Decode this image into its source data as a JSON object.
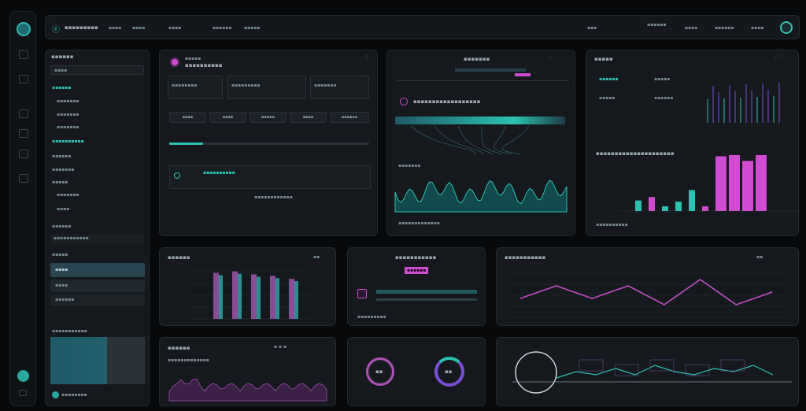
{
  "colors": {
    "bg": "#07090b",
    "panel": "#15191d",
    "teal": "#2cc2b2",
    "pink": "#d14bd2",
    "grid": "#2b3338"
  },
  "topbar": {
    "brand": "ⓔ",
    "title": "▪▪▪▪▪▪▪▪▪",
    "nav": [
      "▪▪▪▪",
      "▪▪▪▪",
      "▪▪▪▪",
      "▪▪▪▪▪▪",
      "▪▪▪▪▪"
    ],
    "right": [
      "▪▪▪",
      "▪▪▪▪▪▪",
      "▪▪▪▪",
      "▪▪▪▪▪▪",
      "▪▪▪▪"
    ]
  },
  "rail": {
    "icons": [
      "logo-icon",
      "doc-icon",
      "grid-icon",
      "card-icon",
      "chart-icon",
      "image-icon",
      "settings-icon",
      "user-icon"
    ]
  },
  "sidebar": {
    "header": "▪▪▪▪▪▪",
    "search_placeholder": "▪▪▪▪",
    "groups": [
      {
        "label": "▪▪▪▪▪▪",
        "items": [
          "▪▪▪▪▪▪▪",
          "▪▪▪▪▪▪▪",
          "▪▪▪▪▪▪▪"
        ]
      },
      {
        "label": "▪▪▪▪▪▪▪▪▪▪",
        "items": []
      },
      {
        "label": "▪▪▪▪▪▪",
        "items": []
      },
      {
        "label": "▪▪▪▪▪▪▪",
        "items": []
      },
      {
        "label": "▪▪▪▪▪",
        "items": [
          "▪▪▪▪▪▪▪",
          "▪▪▪▪"
        ]
      }
    ],
    "section2": "▪▪▪▪▪▪",
    "list": [
      "▪▪▪▪▪▪▪▪▪▪▪",
      "▪▪▪▪▪",
      "▪▪▪▪",
      "▪▪▪▪",
      "▪▪▪▪▪▪"
    ],
    "footer_label": "▪▪▪▪▪▪▪▪▪▪▪",
    "footer_bottom": "▪▪▪▪▪▪▪▪"
  },
  "panel_a": {
    "title": "▪▪▪▪▪▪▪▪▪▪",
    "subtitle": "▪▪▪▪▪",
    "fields": [
      "▪▪▪▪▪▪▪▪",
      "▪▪▪▪▪▪▪▪▪",
      "▪▪▪▪▪▪▪"
    ],
    "buttons": [
      "▪▪▪▪",
      "▪▪▪▪",
      "▪▪▪▪▪",
      "▪▪▪▪",
      "▪▪▪▪▪▪"
    ],
    "rows": [
      "▪▪▪▪▪▪▪▪▪▪",
      "▪▪▪▪▪▪▪▪▪▪▪▪"
    ],
    "progress": 0.17
  },
  "panel_b": {
    "title": "▪▪▪▪▪▪▪",
    "heading": "▪▪▪▪▪▪▪▪▪▪▪▪▪▪▪▪▪▪",
    "wave_label": "▪▪▪▪▪▪▪",
    "footer": "▪▪▪▪▪▪▪▪▪▪▪▪▪"
  },
  "panel_c": {
    "title": "▪▪▪▪▪",
    "stats": [
      "▪▪▪▪▪▪",
      "▪▪▪▪▪",
      "▪▪▪▪▪",
      "▪▪▪▪▪▪"
    ],
    "heading": "▪▪▪▪▪▪▪▪▪▪▪▪▪▪▪▪▪▪▪▪▪",
    "footer": "▪▪▪▪▪▪▪▪▪▪"
  },
  "panel_d": {
    "title": "▪▪▪▪▪▪",
    "right": "▪▪"
  },
  "panel_e": {
    "title": "▪▪▪▪▪▪▪▪▪▪▪",
    "badge": "▪▪▪▪▪▪",
    "footer": "▪▪▪▪▪▪▪▪▪"
  },
  "panel_f": {
    "title": "▪▪▪▪▪▪▪▪▪▪▪",
    "right": "▪▪"
  },
  "panel_g": {
    "title": "▪▪▪▪▪▪",
    "legend": "▪▪▪▪▪▪▪▪▪▪▪▪▪"
  },
  "panel_h": {
    "left_value": "▪▪",
    "right_value": "▪▪"
  },
  "chart_data": [
    {
      "type": "bar",
      "categories": [
        "1",
        "2",
        "3",
        "4",
        "5",
        "6",
        "7",
        "8",
        "9",
        "10"
      ],
      "series": [
        {
          "values": [
            9,
            12,
            4,
            8,
            18,
            4,
            47,
            48,
            43,
            48
          ]
        }
      ],
      "ylim": [
        0,
        50
      ]
    },
    {
      "type": "bar",
      "categories": [
        "1",
        "2",
        "3",
        "4",
        "5"
      ],
      "series": [
        {
          "values": [
            62,
            64,
            60,
            58,
            54
          ]
        }
      ],
      "ylim": [
        0,
        70
      ]
    },
    {
      "type": "line",
      "x": [
        1,
        2,
        3,
        4,
        5,
        6,
        7,
        8
      ],
      "series": [
        {
          "values": [
            3,
            5,
            3,
            5,
            2,
            6,
            2,
            4
          ]
        }
      ],
      "ylim": [
        0,
        8
      ]
    },
    {
      "type": "line",
      "x": [
        1,
        2,
        3,
        4,
        5,
        6,
        7,
        8,
        9,
        10,
        11,
        12
      ],
      "series": [
        {
          "values": [
            2,
            4,
            3,
            5,
            3,
            6,
            4,
            3,
            5,
            4,
            6,
            3
          ]
        }
      ],
      "ylim": [
        0,
        8
      ]
    }
  ]
}
